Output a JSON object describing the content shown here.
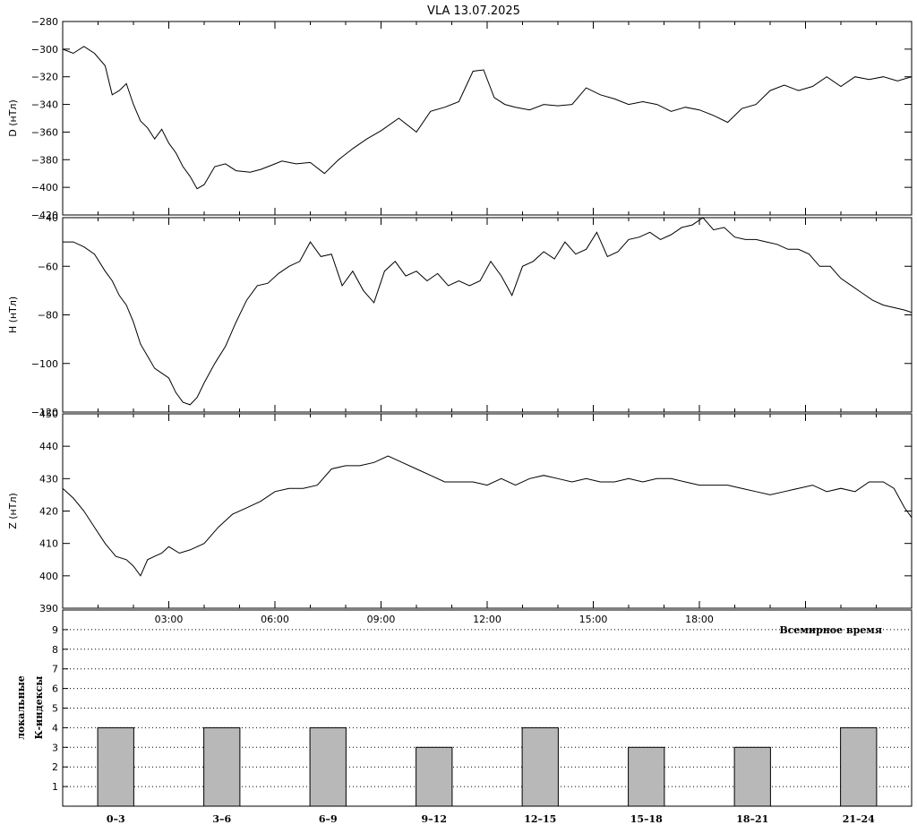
{
  "title": "VLA   13.07.2025",
  "colors": {
    "line": "#000000",
    "bar_fill": "#b8b8b8",
    "bar_stroke": "#000000",
    "grid": "#000000",
    "background": "#ffffff"
  },
  "chart_data": [
    {
      "type": "line",
      "ylabel": "D (нТл)",
      "ylim": [
        -420,
        -280
      ],
      "yticks": [
        -280,
        -300,
        -320,
        -340,
        -360,
        -380,
        -400,
        -420
      ],
      "x_unit": "hours UT",
      "xlim": [
        0,
        24
      ],
      "x": [
        0,
        0.3,
        0.6,
        0.9,
        1.2,
        1.4,
        1.6,
        1.8,
        2.0,
        2.2,
        2.4,
        2.6,
        2.8,
        3.0,
        3.2,
        3.4,
        3.6,
        3.8,
        4.0,
        4.3,
        4.6,
        4.9,
        5.3,
        5.6,
        5.9,
        6.2,
        6.6,
        7.0,
        7.4,
        7.8,
        8.2,
        8.6,
        9.0,
        9.5,
        10.0,
        10.4,
        10.8,
        11.2,
        11.6,
        11.9,
        12.2,
        12.5,
        12.8,
        13.2,
        13.6,
        14.0,
        14.4,
        14.8,
        15.2,
        15.6,
        16.0,
        16.4,
        16.8,
        17.2,
        17.6,
        18.0,
        18.4,
        18.8,
        19.2,
        19.6,
        20.0,
        20.4,
        20.8,
        21.2,
        21.6,
        22.0,
        22.4,
        22.8,
        23.2,
        23.6,
        24.0
      ],
      "y": [
        -300,
        -303,
        -298,
        -303,
        -312,
        -333,
        -330,
        -325,
        -340,
        -352,
        -357,
        -365,
        -358,
        -368,
        -375,
        -385,
        -392,
        -401,
        -398,
        -385,
        -383,
        -388,
        -389,
        -387,
        -384,
        -381,
        -383,
        -382,
        -390,
        -380,
        -372,
        -365,
        -359,
        -350,
        -360,
        -345,
        -342,
        -338,
        -316,
        -315,
        -335,
        -340,
        -342,
        -344,
        -340,
        -341,
        -340,
        -328,
        -333,
        -336,
        -340,
        -338,
        -340,
        -345,
        -342,
        -344,
        -348,
        -353,
        -343,
        -340,
        -330,
        -326,
        -330,
        -327,
        -320,
        -327,
        -320,
        -322,
        -320,
        -323,
        -320
      ]
    },
    {
      "type": "line",
      "ylabel": "H (нТл)",
      "ylim": [
        -120,
        -40
      ],
      "yticks": [
        -40,
        -60,
        -80,
        -100,
        -120
      ],
      "x_unit": "hours UT",
      "xlim": [
        0,
        24
      ],
      "x": [
        0,
        0.3,
        0.6,
        0.9,
        1.2,
        1.4,
        1.6,
        1.8,
        2.0,
        2.2,
        2.4,
        2.6,
        2.8,
        3.0,
        3.2,
        3.4,
        3.6,
        3.8,
        4.0,
        4.3,
        4.6,
        4.9,
        5.2,
        5.5,
        5.8,
        6.1,
        6.4,
        6.7,
        7.0,
        7.3,
        7.6,
        7.9,
        8.2,
        8.5,
        8.8,
        9.1,
        9.4,
        9.7,
        10.0,
        10.3,
        10.6,
        10.9,
        11.2,
        11.5,
        11.8,
        12.1,
        12.4,
        12.7,
        13.0,
        13.3,
        13.6,
        13.9,
        14.2,
        14.5,
        14.8,
        15.1,
        15.4,
        15.7,
        16.0,
        16.3,
        16.6,
        16.9,
        17.2,
        17.5,
        17.8,
        18.1,
        18.4,
        18.7,
        19.0,
        19.3,
        19.6,
        19.9,
        20.2,
        20.5,
        20.8,
        21.1,
        21.4,
        21.7,
        22.0,
        22.3,
        22.6,
        22.9,
        23.2,
        23.5,
        23.8,
        24.0
      ],
      "y": [
        -50,
        -50,
        -52,
        -55,
        -62,
        -66,
        -72,
        -76,
        -83,
        -92,
        -97,
        -102,
        -104,
        -106,
        -112,
        -116,
        -117,
        -114,
        -108,
        -100,
        -93,
        -83,
        -74,
        -68,
        -67,
        -63,
        -60,
        -58,
        -50,
        -56,
        -55,
        -68,
        -62,
        -70,
        -75,
        -62,
        -58,
        -64,
        -62,
        -66,
        -63,
        -68,
        -66,
        -68,
        -66,
        -58,
        -64,
        -72,
        -60,
        -58,
        -54,
        -57,
        -50,
        -55,
        -53,
        -46,
        -56,
        -54,
        -49,
        -48,
        -46,
        -49,
        -47,
        -44,
        -43,
        -40,
        -45,
        -44,
        -48,
        -49,
        -49,
        -50,
        -51,
        -53,
        -53,
        -55,
        -60,
        -60,
        -65,
        -68,
        -71,
        -74,
        -76,
        -77,
        -78,
        -79
      ]
    },
    {
      "type": "line",
      "ylabel": "Z (нТл)",
      "ylim": [
        390,
        450
      ],
      "yticks": [
        390,
        400,
        410,
        420,
        430,
        440,
        450
      ],
      "x_unit": "hours UT",
      "xlim": [
        0,
        24
      ],
      "x": [
        0,
        0.3,
        0.6,
        0.9,
        1.2,
        1.5,
        1.8,
        2.0,
        2.2,
        2.4,
        2.6,
        2.8,
        3.0,
        3.3,
        3.6,
        4.0,
        4.4,
        4.8,
        5.2,
        5.6,
        6.0,
        6.4,
        6.8,
        7.2,
        7.6,
        8.0,
        8.4,
        8.8,
        9.2,
        9.6,
        10.0,
        10.4,
        10.8,
        11.2,
        11.6,
        12.0,
        12.4,
        12.8,
        13.2,
        13.6,
        14.0,
        14.4,
        14.8,
        15.2,
        15.6,
        16.0,
        16.4,
        16.8,
        17.2,
        17.6,
        18.0,
        18.4,
        18.8,
        19.2,
        19.6,
        20.0,
        20.4,
        20.8,
        21.2,
        21.6,
        22.0,
        22.4,
        22.8,
        23.2,
        23.5,
        23.8,
        24.0
      ],
      "y": [
        427,
        424,
        420,
        415,
        410,
        406,
        405,
        403,
        400,
        405,
        406,
        407,
        409,
        407,
        408,
        410,
        415,
        419,
        421,
        423,
        426,
        427,
        427,
        428,
        433,
        434,
        434,
        435,
        437,
        435,
        433,
        431,
        429,
        429,
        429,
        428,
        430,
        428,
        430,
        431,
        430,
        429,
        430,
        429,
        429,
        430,
        429,
        430,
        430,
        429,
        428,
        428,
        428,
        427,
        426,
        425,
        426,
        427,
        428,
        426,
        427,
        426,
        429,
        429,
        427,
        421,
        418
      ]
    },
    {
      "type": "bar",
      "ylabel": "локальные К-индексы",
      "xlabel": "Всемирное время",
      "ylim": [
        0,
        10
      ],
      "yticks": [
        1,
        2,
        3,
        4,
        5,
        6,
        7,
        8,
        9
      ],
      "grid": true,
      "categories": [
        "0–3",
        "3–6",
        "6–9",
        "9–12",
        "12–15",
        "15–18",
        "18–21",
        "21–24"
      ],
      "values": [
        4,
        4,
        4,
        3,
        4,
        3,
        3,
        4
      ]
    }
  ],
  "time_ticks": [
    "03:00",
    "06:00",
    "09:00",
    "12:00",
    "15:00",
    "18:00"
  ],
  "time_tick_hours": [
    3,
    6,
    9,
    12,
    15,
    18
  ]
}
